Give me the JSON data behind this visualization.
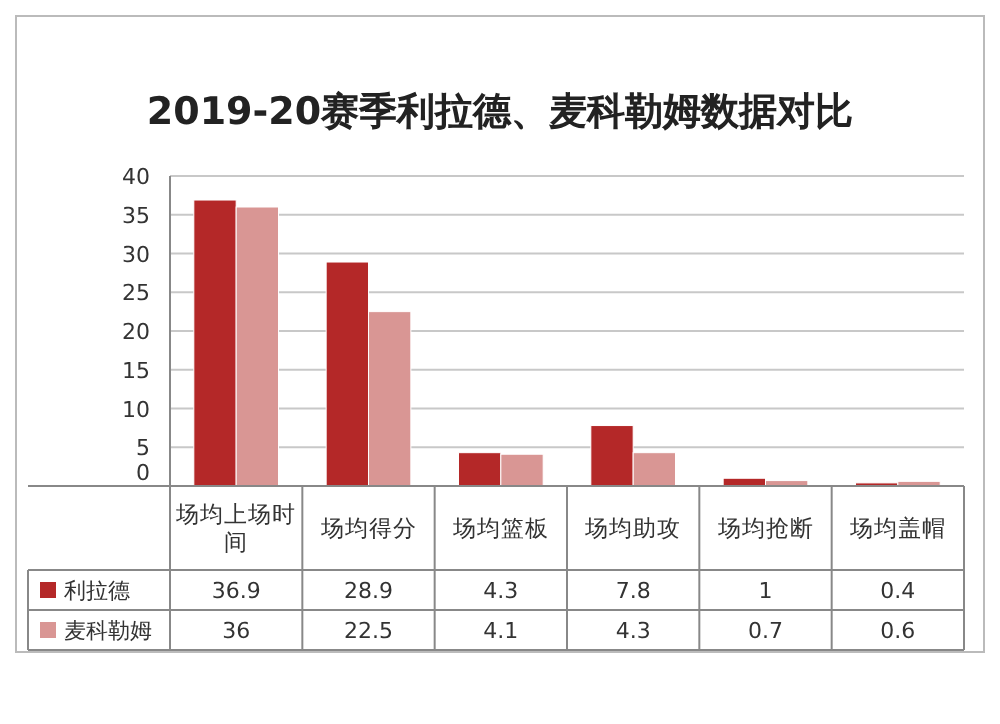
{
  "chart_data": {
    "type": "bar",
    "title": "2019-20赛季利拉德、麦科勒姆数据对比",
    "categories": [
      "场均上场时间",
      "场均得分",
      "场均篮板",
      "场均助攻",
      "场均抢断",
      "场均盖帽"
    ],
    "series": [
      {
        "name": "利拉德",
        "color": "#b42828",
        "values": [
          36.9,
          28.9,
          4.3,
          7.8,
          1,
          0.4
        ]
      },
      {
        "name": "麦科勒姆",
        "color": "#d99694",
        "values": [
          36,
          22.5,
          4.1,
          4.3,
          0.7,
          0.6
        ]
      }
    ],
    "ylim": [
      0,
      40
    ],
    "yticks": [
      0,
      5,
      10,
      15,
      20,
      25,
      30,
      35,
      40
    ],
    "grid": "y",
    "data_labels": true,
    "legend": "bottom"
  }
}
